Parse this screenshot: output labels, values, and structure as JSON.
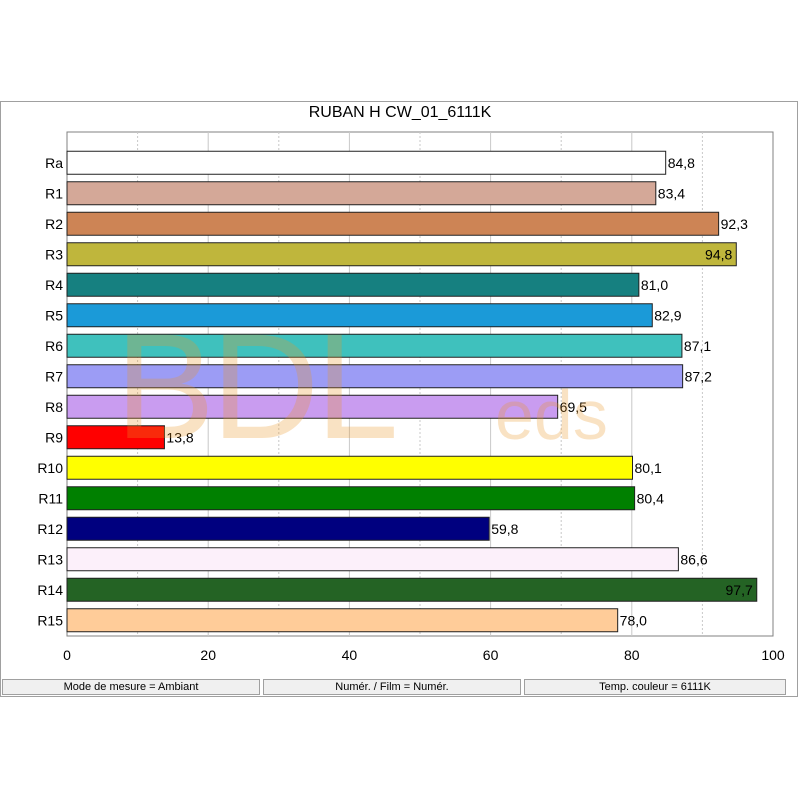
{
  "chart_data": {
    "type": "bar",
    "orientation": "horizontal",
    "title": "RUBAN H CW_01_6111K",
    "categories": [
      "Ra",
      "R1",
      "R2",
      "R3",
      "R4",
      "R5",
      "R6",
      "R7",
      "R8",
      "R9",
      "R10",
      "R11",
      "R12",
      "R13",
      "R14",
      "R15"
    ],
    "values": [
      84.8,
      83.4,
      92.3,
      94.8,
      81.0,
      82.9,
      87.1,
      87.2,
      69.5,
      13.8,
      80.1,
      80.4,
      59.8,
      86.6,
      97.7,
      78.0
    ],
    "value_labels": [
      "84,8",
      "83,4",
      "92,3",
      "94,8",
      "81,0",
      "82,9",
      "87,1",
      "87,2",
      "69,5",
      "13,8",
      "80,1",
      "80,4",
      "59,8",
      "86,6",
      "97,7",
      "78,0"
    ],
    "colors": [
      "#ffffff",
      "#d4a898",
      "#cd8455",
      "#bfb63c",
      "#168080",
      "#1b9ad8",
      "#3fc1bd",
      "#9c9cf5",
      "#c99cf0",
      "#ff0000",
      "#ffff00",
      "#008000",
      "#00007f",
      "#fcf0fa",
      "#246324",
      "#ffcc99"
    ],
    "xlim": [
      0,
      100
    ],
    "xticks": [
      0,
      20,
      40,
      60,
      80,
      100
    ],
    "xlabel": "",
    "ylabel": "",
    "grid": true,
    "legend": "none"
  },
  "status_bar": {
    "mode": "Mode de mesure = Ambiant",
    "film": "Numér. / Film = Numér.",
    "temp": "Temp. couleur = 6111K"
  },
  "watermark": {
    "main": "BDL",
    "suffix": "eds"
  }
}
